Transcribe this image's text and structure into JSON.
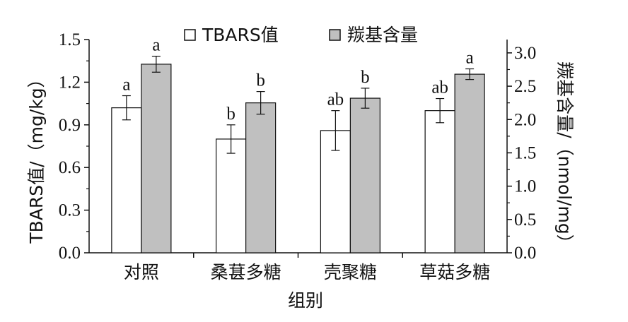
{
  "chart_data": {
    "type": "bar",
    "categories": [
      "对照",
      "桑葚多糖",
      "壳聚糖",
      "草菇多糖"
    ],
    "xlabel": "组别",
    "ylabel_left": "TBARS值/（mg/kg）",
    "ylabel_right": "羰基含量/（nmol/mg）",
    "ylim_left": [
      0,
      1.5
    ],
    "yticks_left": [
      "0.0",
      "0.3",
      "0.6",
      "0.9",
      "1.2",
      "1.5"
    ],
    "ylim_right": [
      0,
      3.2
    ],
    "yticks_right": [
      "0.0",
      "0.5",
      "1.0",
      "1.5",
      "2.0",
      "2.5",
      "3.0"
    ],
    "legend_position": "top",
    "grid": false,
    "series": [
      {
        "name": "TBARS值",
        "axis": "left",
        "color": "#ffffff",
        "values": [
          1.02,
          0.8,
          0.86,
          1.0
        ],
        "errors": [
          0.085,
          0.1,
          0.14,
          0.085
        ],
        "labels": [
          "a",
          "b",
          "ab",
          "ab"
        ]
      },
      {
        "name": "羰基含量",
        "axis": "right",
        "color": "#c0c0c0",
        "values": [
          2.83,
          2.25,
          2.32,
          2.68
        ],
        "errors": [
          0.12,
          0.17,
          0.15,
          0.08
        ],
        "labels": [
          "a",
          "b",
          "b",
          "a"
        ]
      }
    ]
  }
}
